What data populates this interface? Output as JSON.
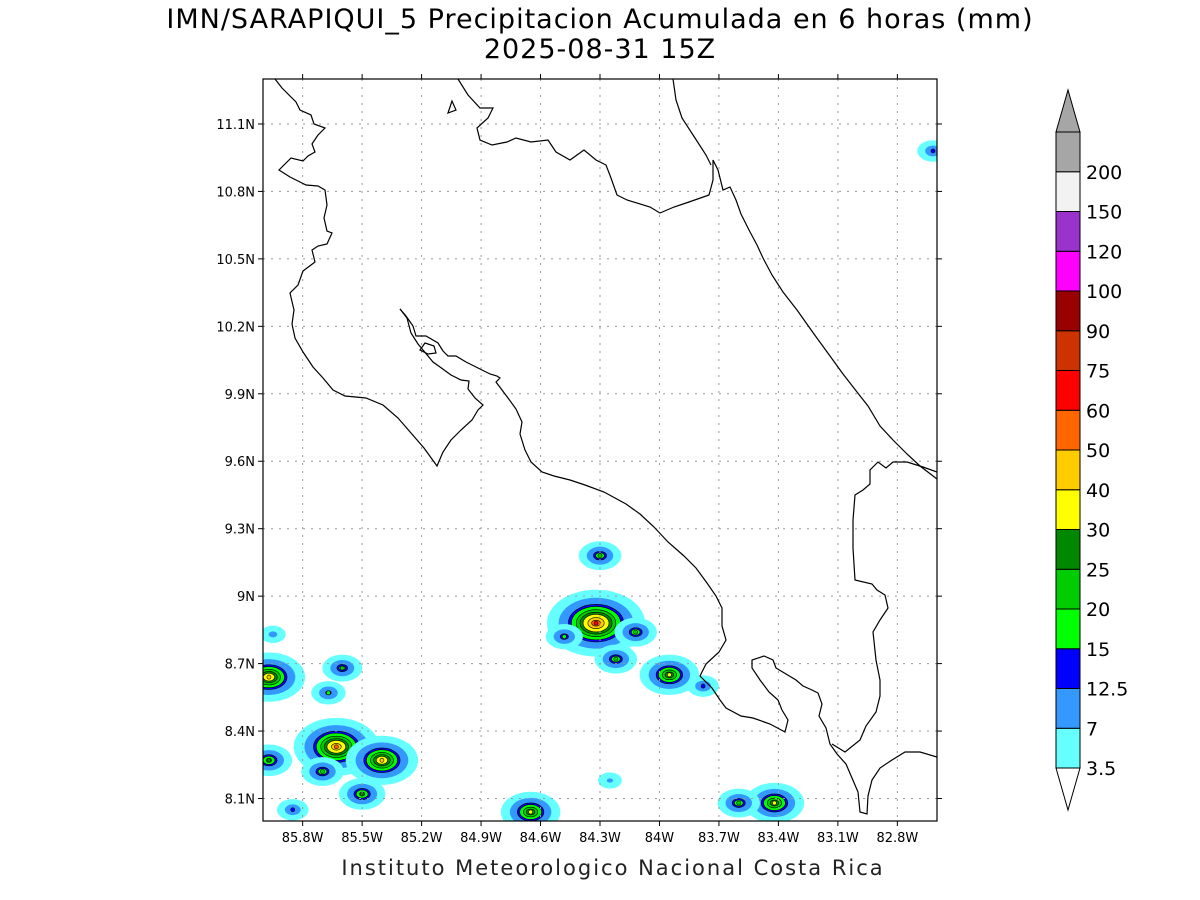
{
  "title": {
    "line1": "IMN/SARAPIQUI_5 Precipitacion Acumulada en 6 horas (mm)",
    "line2": "2025-08-31 15Z"
  },
  "footer": "Instituto Meteorologico Nacional Costa Rica",
  "map": {
    "lon_range": [
      -86.0,
      -82.6
    ],
    "lat_range": [
      8.0,
      11.3
    ],
    "lat_ticks": [
      {
        "value": 8.1,
        "label": "8.1N"
      },
      {
        "value": 8.4,
        "label": "8.4N"
      },
      {
        "value": 8.7,
        "label": "8.7N"
      },
      {
        "value": 9.0,
        "label": "9N"
      },
      {
        "value": 9.3,
        "label": "9.3N"
      },
      {
        "value": 9.6,
        "label": "9.6N"
      },
      {
        "value": 9.9,
        "label": "9.9N"
      },
      {
        "value": 10.2,
        "label": "10.2N"
      },
      {
        "value": 10.5,
        "label": "10.5N"
      },
      {
        "value": 10.8,
        "label": "10.8N"
      },
      {
        "value": 11.1,
        "label": "11.1N"
      }
    ],
    "lon_ticks": [
      {
        "value": -85.8,
        "label": "85.8W"
      },
      {
        "value": -85.5,
        "label": "85.5W"
      },
      {
        "value": -85.2,
        "label": "85.2W"
      },
      {
        "value": -84.9,
        "label": "84.9W"
      },
      {
        "value": -84.6,
        "label": "84.6W"
      },
      {
        "value": -84.3,
        "label": "84.3W"
      },
      {
        "value": -84.0,
        "label": "84W"
      },
      {
        "value": -83.7,
        "label": "83.7W"
      },
      {
        "value": -83.4,
        "label": "83.4W"
      },
      {
        "value": -83.1,
        "label": "83.1W"
      },
      {
        "value": -82.8,
        "label": "82.8W"
      }
    ]
  },
  "colorbar": {
    "levels": [
      {
        "label": "3.5",
        "color": "#66ffff"
      },
      {
        "label": "7",
        "color": "#3399ff"
      },
      {
        "label": "12.5",
        "color": "#0000ff"
      },
      {
        "label": "15",
        "color": "#00ff00"
      },
      {
        "label": "20",
        "color": "#00cc00"
      },
      {
        "label": "25",
        "color": "#008800"
      },
      {
        "label": "30",
        "color": "#ffff00"
      },
      {
        "label": "40",
        "color": "#ffcc00"
      },
      {
        "label": "50",
        "color": "#ff6600"
      },
      {
        "label": "60",
        "color": "#ff0000"
      },
      {
        "label": "75",
        "color": "#cc3300"
      },
      {
        "label": "90",
        "color": "#990000"
      },
      {
        "label": "100",
        "color": "#ff00ff"
      },
      {
        "label": "120",
        "color": "#9933cc"
      },
      {
        "label": "150",
        "color": "#f2f2f2"
      },
      {
        "label": "200",
        "color": "#a6a6a6"
      }
    ],
    "under_color": "#ffffff",
    "over_color": "#a6a6a6"
  },
  "precip_cells": [
    {
      "lon": -84.32,
      "lat": 8.88,
      "peak": 65
    },
    {
      "lon": -84.12,
      "lat": 8.84,
      "peak": 22
    },
    {
      "lon": -84.48,
      "lat": 8.82,
      "peak": 18
    },
    {
      "lon": -84.22,
      "lat": 8.72,
      "peak": 22
    },
    {
      "lon": -84.3,
      "lat": 9.18,
      "peak": 22
    },
    {
      "lon": -83.95,
      "lat": 8.65,
      "peak": 35
    },
    {
      "lon": -83.78,
      "lat": 8.6,
      "peak": 14
    },
    {
      "lon": -85.63,
      "lat": 8.33,
      "peak": 55
    },
    {
      "lon": -85.4,
      "lat": 8.27,
      "peak": 45
    },
    {
      "lon": -85.7,
      "lat": 8.22,
      "peak": 22
    },
    {
      "lon": -85.5,
      "lat": 8.12,
      "peak": 25
    },
    {
      "lon": -85.97,
      "lat": 8.27,
      "peak": 25
    },
    {
      "lon": -85.97,
      "lat": 8.64,
      "peak": 45
    },
    {
      "lon": -85.6,
      "lat": 8.68,
      "peak": 20
    },
    {
      "lon": -85.67,
      "lat": 8.57,
      "peak": 16
    },
    {
      "lon": -85.85,
      "lat": 8.05,
      "peak": 14
    },
    {
      "lon": -85.95,
      "lat": 8.83,
      "peak": 10
    },
    {
      "lon": -84.65,
      "lat": 8.04,
      "peak": 35
    },
    {
      "lon": -83.42,
      "lat": 8.08,
      "peak": 35
    },
    {
      "lon": -83.6,
      "lat": 8.08,
      "peak": 22
    },
    {
      "lon": -84.25,
      "lat": 8.18,
      "peak": 9
    },
    {
      "lon": -82.62,
      "lat": 10.98,
      "peak": 14
    }
  ]
}
